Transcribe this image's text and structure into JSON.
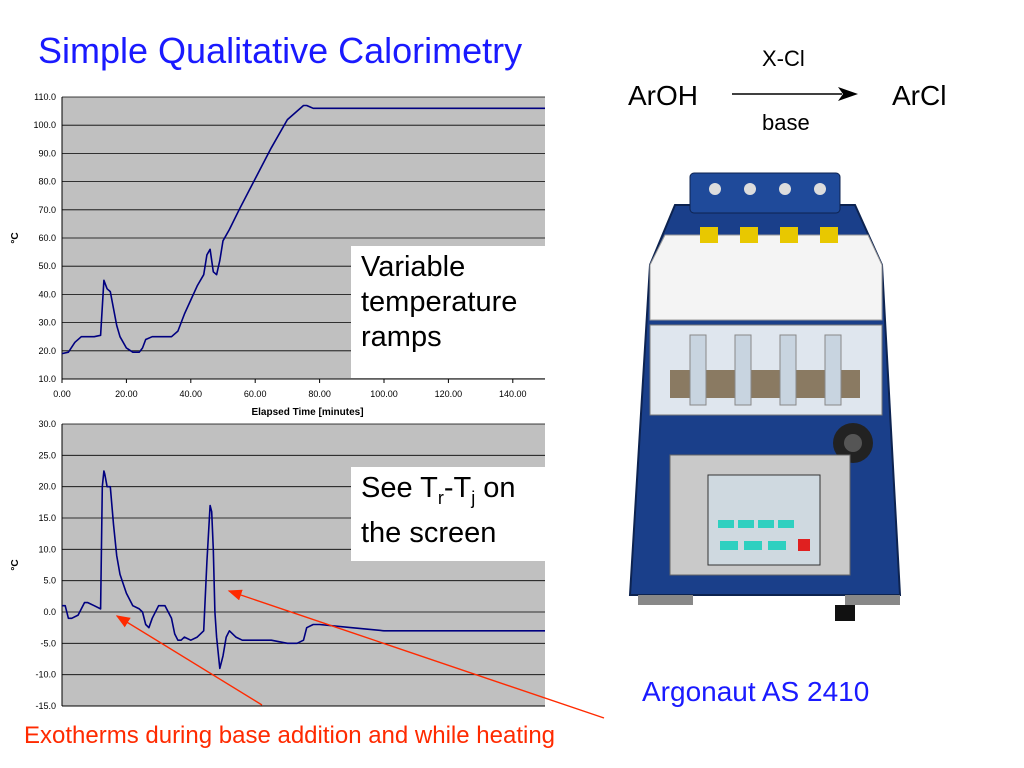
{
  "slide": {
    "title": "Simple Qualitative Calorimetry",
    "footer_note": "Exotherms during base addition and while heating"
  },
  "reaction": {
    "reactant": "ArOH",
    "product": "ArCl",
    "reagent": "X-Cl",
    "condition": "base"
  },
  "callouts": {
    "ramps": [
      "Variable",
      "temperature",
      "ramps"
    ],
    "screen": {
      "see": "See T",
      "sub_r": "r",
      "dash": "-T",
      "sub_j": "j",
      "on": " on",
      "line2": "the screen"
    }
  },
  "device": {
    "caption": "Argonaut AS 2410"
  },
  "colors": {
    "title": "#1a1aff",
    "plot_bg": "#c0c0c0",
    "series": "#000080",
    "annotation": "#ff2a00"
  },
  "chart_data": [
    {
      "type": "line",
      "title": "",
      "xlabel": "Elapsed Time [minutes]",
      "ylabel": "°C",
      "xlim": [
        0,
        150
      ],
      "ylim": [
        10,
        110
      ],
      "x_ticks": [
        "0.00",
        "20.00",
        "40.00",
        "60.00",
        "80.00",
        "100.00",
        "120.00",
        "140.00"
      ],
      "y_ticks": [
        "10.0",
        "20.0",
        "30.0",
        "40.0",
        "50.0",
        "60.0",
        "70.0",
        "80.0",
        "90.0",
        "100.0",
        "110.0"
      ],
      "grid": true,
      "series": [
        {
          "x": [
            0,
            2,
            4,
            6,
            8,
            10,
            12,
            13,
            14,
            15,
            16,
            17,
            18,
            20,
            22,
            24,
            25,
            26,
            28,
            30,
            32,
            34,
            36,
            38,
            40,
            42,
            44,
            45,
            46,
            47,
            48,
            49,
            50,
            52,
            55,
            60,
            65,
            70,
            75,
            76,
            77,
            78,
            80,
            90,
            100,
            110,
            120,
            130,
            140,
            150
          ],
          "y": [
            19,
            19.5,
            23,
            25,
            25,
            25,
            25.5,
            45,
            42,
            41,
            35,
            29,
            25,
            21,
            19.5,
            19.5,
            21,
            24,
            25,
            25,
            25,
            25,
            27,
            33,
            38,
            43,
            47,
            54,
            56,
            48,
            47,
            52,
            59,
            63,
            70,
            81,
            92,
            102,
            107,
            107,
            106.5,
            106,
            106,
            106,
            106,
            106,
            106,
            106,
            106,
            106
          ]
        }
      ]
    },
    {
      "type": "line",
      "title": "",
      "xlabel": "",
      "ylabel": "°C",
      "xlim": [
        0,
        150
      ],
      "ylim": [
        -15,
        30
      ],
      "x_ticks": [],
      "y_ticks": [
        "-15.0",
        "-10.0",
        "-5.0",
        "0.0",
        "5.0",
        "10.0",
        "15.0",
        "20.0",
        "25.0",
        "30.0"
      ],
      "grid": true,
      "series": [
        {
          "x": [
            0,
            1,
            2,
            3,
            5,
            7,
            8,
            10,
            12,
            12.5,
            13,
            13.3,
            14,
            15,
            16,
            17,
            18,
            20,
            22,
            24,
            25,
            26,
            27,
            28,
            30,
            32,
            34,
            35,
            36,
            37,
            38,
            40,
            42,
            44,
            45,
            46,
            46.5,
            47,
            47.5,
            48,
            49,
            50,
            51,
            52,
            54,
            56,
            60,
            65,
            70,
            73,
            75,
            76,
            78,
            80,
            90,
            100,
            110,
            120,
            130,
            140,
            150
          ],
          "y": [
            1,
            1,
            -1,
            -1,
            -0.5,
            1.5,
            1.5,
            1,
            0.5,
            20,
            22.5,
            22,
            20,
            20,
            14,
            9,
            6,
            3,
            1,
            0.5,
            0,
            -2,
            -2.5,
            -1,
            1,
            1,
            -1,
            -3.5,
            -4.5,
            -4.5,
            -4,
            -4.5,
            -4,
            -3,
            8,
            17,
            16,
            10,
            0,
            -4,
            -9,
            -7,
            -4,
            -3,
            -4,
            -4.5,
            -4.5,
            -4.5,
            -5,
            -5,
            -4.5,
            -2.5,
            -2,
            -2,
            -2.5,
            -3,
            -3,
            -3,
            -3,
            -3,
            -3
          ]
        }
      ]
    }
  ]
}
